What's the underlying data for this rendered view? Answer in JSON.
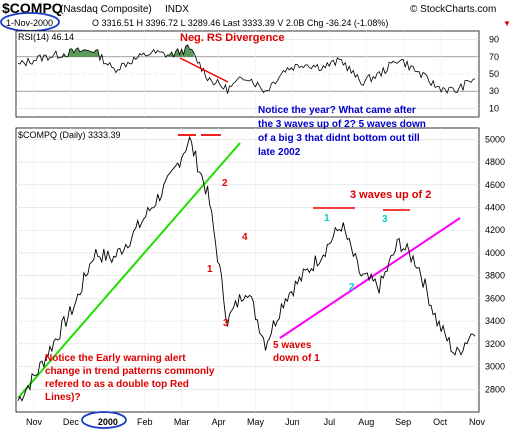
{
  "header": {
    "symbol": "$COMPQ",
    "name": "(Nasdaq Composite)",
    "exchange": "INDX",
    "site": "© StockCharts.com",
    "date": "1-Nov-2000",
    "quote": "O 3316.51  H 3396.72  L 3289.46  Last 3333.39  V 2.0B  Chg -36.24 (-1.08%)",
    "chg_marker": "▼"
  },
  "rsi_panel": {
    "label": "RSI(14) 46.14",
    "ticks": [
      "90",
      "70",
      "50",
      "30",
      "10"
    ]
  },
  "price_panel": {
    "label": "$COMPQ (Daily) 3333.39",
    "ticks": [
      "5000",
      "4800",
      "4600",
      "4400",
      "4200",
      "4000",
      "3800",
      "3600",
      "3400",
      "3200",
      "3000",
      "2800"
    ]
  },
  "x_axis": {
    "labels": [
      "Nov",
      "Dec",
      "2000",
      "Feb",
      "Mar",
      "Apr",
      "May",
      "Jun",
      "Jul",
      "Aug",
      "Sep",
      "Oct",
      "Nov"
    ]
  },
  "annotations": {
    "neg_rs": "Neg. RS Divergence",
    "notice_year": [
      "Notice the year? What came after",
      "the 3 waves up of 2? 5 waves down",
      "of a big 3 that didnt bottom out till",
      "late 2002"
    ],
    "waves_up": "3 waves up of 2",
    "five_waves": [
      "5 waves",
      "down of  1"
    ],
    "early_warning": [
      "Notice the Early warning alert",
      "change in trend patterns commonly",
      "refered to as a double top Red",
      "Lines)?"
    ],
    "wave_labels_red": [
      "1",
      "2",
      "3",
      "4"
    ],
    "wave_labels_cyan": [
      "1",
      "2",
      "3"
    ]
  },
  "colors": {
    "price": "#000000",
    "support": "#22dd00",
    "lower": "#ff00ff",
    "tops": "#ee0000",
    "annotation_red": "#dd0000",
    "annotation_blue": "#0000cc",
    "wave_cyan": "#00cccc",
    "rsi_fill": "#5a9a5a",
    "circle": "#1a3cc8"
  },
  "chart_data": {
    "type": "line",
    "title": "$COMPQ (Daily) 3333.39",
    "x": [
      "Nov-99",
      "mid Nov",
      "Dec",
      "mid Dec",
      "Jan-00",
      "mid Jan",
      "Feb",
      "mid Feb",
      "Mar",
      "mid Mar",
      "Apr",
      "mid Apr",
      "May",
      "mid May",
      "Jun",
      "mid Jun",
      "Jul",
      "mid Jul",
      "Aug",
      "mid Aug",
      "Sep",
      "mid Sep",
      "Oct",
      "mid Oct",
      "Nov-00"
    ],
    "series": [
      {
        "name": "$COMPQ",
        "values": [
          2700,
          2950,
          3250,
          3550,
          4000,
          3950,
          4150,
          4400,
          4650,
          5000,
          4500,
          3400,
          3700,
          3200,
          3600,
          3800,
          4000,
          4250,
          3800,
          3700,
          4100,
          3900,
          3400,
          3100,
          3333
        ]
      },
      {
        "name": "RSI(14)",
        "values": [
          60,
          68,
          72,
          76,
          78,
          55,
          66,
          75,
          72,
          80,
          45,
          32,
          48,
          30,
          55,
          62,
          58,
          66,
          40,
          50,
          68,
          52,
          35,
          30,
          46
        ]
      }
    ],
    "ylim": [
      2600,
      5100
    ],
    "y2lim": [
      0,
      100
    ],
    "grid": true
  }
}
